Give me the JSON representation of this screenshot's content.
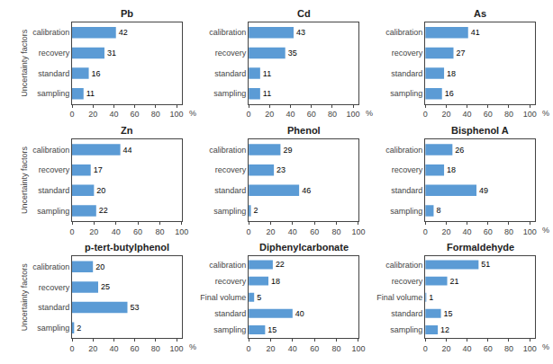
{
  "chart_data": [
    {
      "type": "bar",
      "orientation": "horizontal",
      "title": "Pb",
      "ylabel": "Uncertainty factors",
      "categories": [
        "calibration",
        "recovery",
        "standard",
        "sampling"
      ],
      "values": [
        42,
        31,
        16,
        11
      ],
      "color": "#5B9BD5",
      "xlim": [
        0,
        105
      ],
      "xticks": [
        0,
        20,
        40,
        60,
        80,
        100
      ],
      "annotation": "%",
      "data_labels": true,
      "grid": false
    },
    {
      "type": "bar",
      "orientation": "horizontal",
      "title": "Cd",
      "categories": [
        "calibration",
        "recovery",
        "standard",
        "sampling"
      ],
      "values": [
        43,
        35,
        11,
        11
      ],
      "color": "#5B9BD5",
      "xlim": [
        0,
        105
      ],
      "xticks": [
        0,
        20,
        40,
        60,
        80,
        100
      ],
      "annotation": "%",
      "data_labels": true,
      "grid": false
    },
    {
      "type": "bar",
      "orientation": "horizontal",
      "title": "As",
      "categories": [
        "calibration",
        "recovery",
        "standard",
        "sampling"
      ],
      "values": [
        41,
        27,
        18,
        16
      ],
      "color": "#5B9BD5",
      "xlim": [
        0,
        105
      ],
      "xticks": [
        0,
        20,
        40,
        60,
        80,
        100
      ],
      "annotation": "%",
      "data_labels": true,
      "grid": false
    },
    {
      "type": "bar",
      "orientation": "horizontal",
      "title": "Zn",
      "ylabel": "Uncertainty factors",
      "categories": [
        "calibration",
        "recovery",
        "standard",
        "sampling"
      ],
      "values": [
        44,
        17,
        20,
        22
      ],
      "color": "#5B9BD5",
      "xlim": [
        0,
        100
      ],
      "xticks": [
        0,
        20,
        40,
        60,
        80,
        100
      ],
      "data_labels": true,
      "grid": false
    },
    {
      "type": "bar",
      "orientation": "horizontal",
      "title": "Phenol",
      "categories": [
        "calibration",
        "recovery",
        "standard",
        "sampling"
      ],
      "values": [
        29,
        23,
        46,
        2
      ],
      "color": "#5B9BD5",
      "xlim": [
        0,
        100
      ],
      "xticks": [
        0,
        20,
        40,
        60,
        80,
        100
      ],
      "data_labels": true,
      "grid": false
    },
    {
      "type": "bar",
      "orientation": "horizontal",
      "title": "Bisphenol A",
      "categories": [
        "calibration",
        "recovery",
        "standard",
        "sampling"
      ],
      "values": [
        26,
        18,
        49,
        8
      ],
      "color": "#5B9BD5",
      "xlim": [
        0,
        105
      ],
      "xticks": [
        0,
        20,
        40,
        60,
        80,
        100
      ],
      "annotation": "%",
      "data_labels": true,
      "grid": false
    },
    {
      "type": "bar",
      "orientation": "horizontal",
      "title": "p-tert-butylphenol",
      "ylabel": "Uncertainty factors",
      "categories": [
        "calibration",
        "recovery",
        "standard",
        "sampling"
      ],
      "values": [
        20,
        25,
        53,
        2
      ],
      "color": "#5B9BD5",
      "xlim": [
        0,
        105
      ],
      "xticks": [
        0,
        20,
        40,
        60,
        80,
        100
      ],
      "annotation": "%",
      "data_labels": true,
      "grid": false
    },
    {
      "type": "bar",
      "orientation": "horizontal",
      "title": "Diphenylcarbonate",
      "categories": [
        "calibration",
        "recovery",
        "Final volume",
        "standard",
        "sampling"
      ],
      "values": [
        22,
        18,
        5,
        40,
        15
      ],
      "color": "#5B9BD5",
      "xlim": [
        0,
        100
      ],
      "xticks": [
        0,
        20,
        40,
        60,
        80,
        100
      ],
      "data_labels": true,
      "grid": false
    },
    {
      "type": "bar",
      "orientation": "horizontal",
      "title": "Formaldehyde",
      "categories": [
        "calibration",
        "recovery",
        "Final volume",
        "standard",
        "sampling"
      ],
      "values": [
        51,
        21,
        1,
        15,
        12
      ],
      "color": "#5B9BD5",
      "xlim": [
        0,
        105
      ],
      "xticks": [
        0,
        20,
        40,
        60,
        80,
        100
      ],
      "annotation": "%",
      "data_labels": true,
      "grid": false
    }
  ]
}
